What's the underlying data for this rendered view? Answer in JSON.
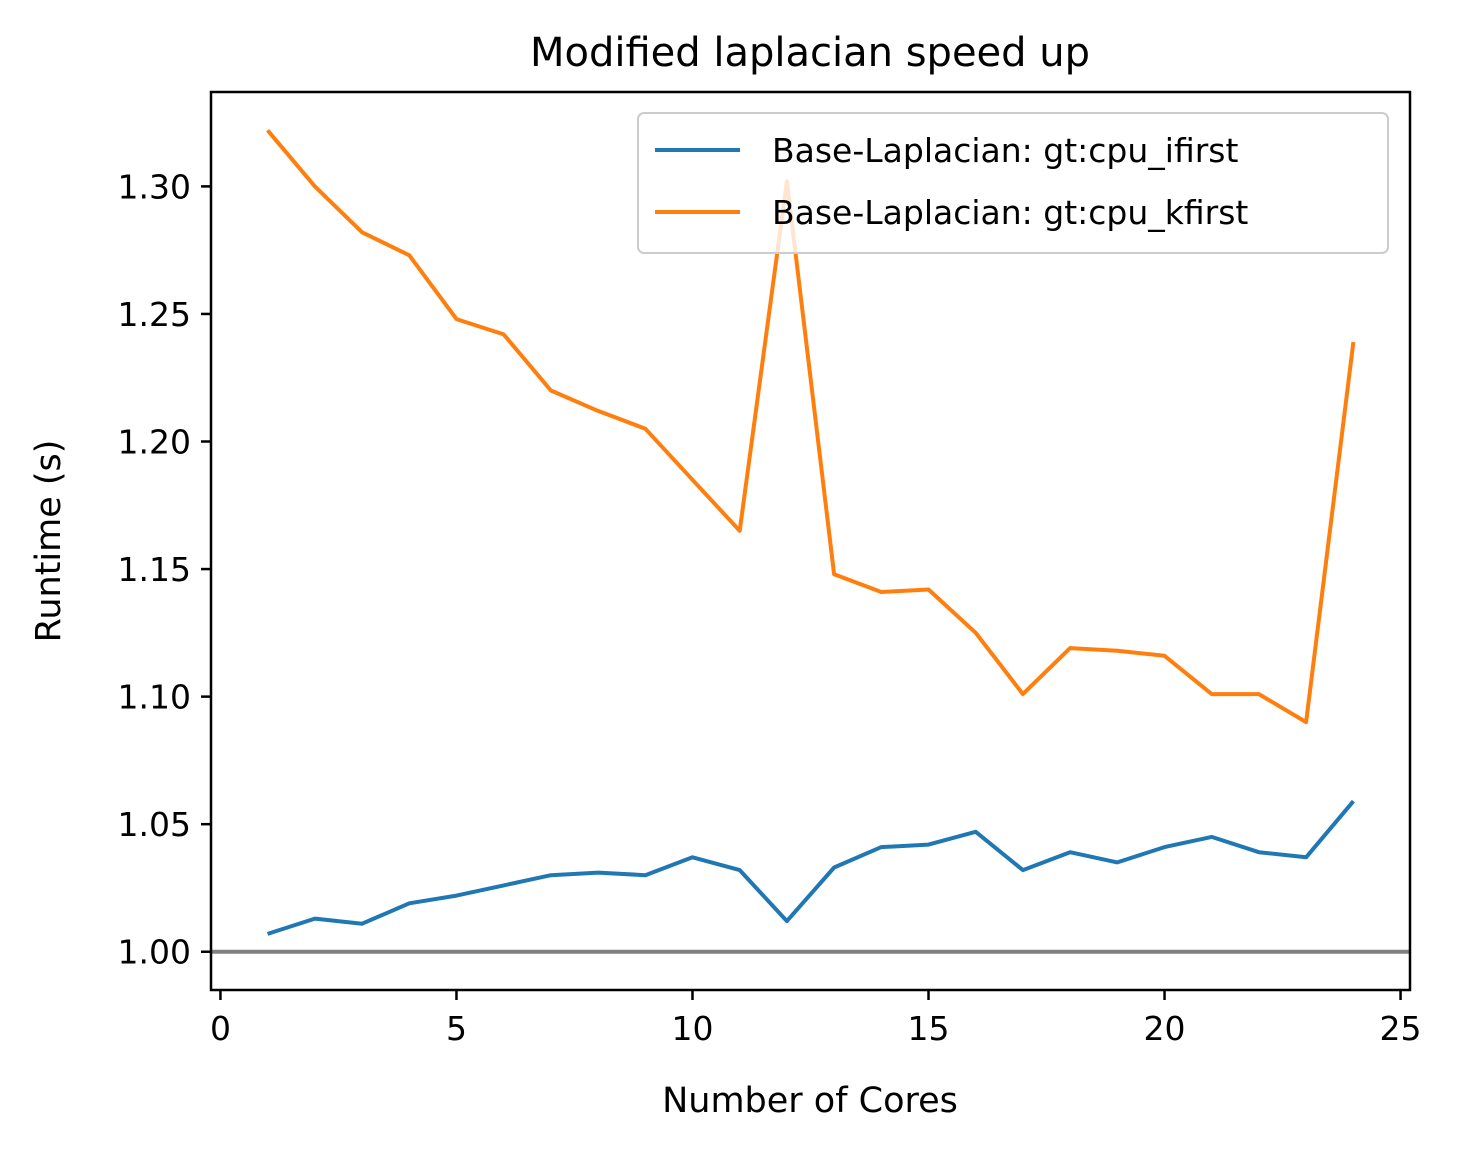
{
  "chart_data": {
    "type": "line",
    "title": "Modified laplacian speed up",
    "xlabel": "Number of Cores",
    "ylabel": "Runtime (s)",
    "xlim": [
      -0.2,
      25.2
    ],
    "ylim": [
      0.985,
      1.337
    ],
    "xticks": [
      0,
      5,
      10,
      15,
      20,
      25
    ],
    "xtick_labels": [
      "0",
      "5",
      "10",
      "15",
      "20",
      "25"
    ],
    "yticks": [
      1.0,
      1.05,
      1.1,
      1.15,
      1.2,
      1.25,
      1.3
    ],
    "ytick_labels": [
      "1.00",
      "1.05",
      "1.10",
      "1.15",
      "1.20",
      "1.25",
      "1.30"
    ],
    "grid": false,
    "legend_position": "upper right",
    "reference_line": {
      "y": 1.0,
      "color": "#808080"
    },
    "x": [
      1,
      2,
      3,
      4,
      5,
      6,
      7,
      8,
      9,
      10,
      11,
      12,
      13,
      14,
      15,
      16,
      17,
      18,
      19,
      20,
      21,
      22,
      23,
      24
    ],
    "series": [
      {
        "name": "Base-Laplacian: gt:cpu_ifirst",
        "color": "#1f77b4",
        "values": [
          1.007,
          1.013,
          1.011,
          1.019,
          1.022,
          1.026,
          1.03,
          1.031,
          1.03,
          1.037,
          1.032,
          1.012,
          1.033,
          1.041,
          1.042,
          1.047,
          1.032,
          1.039,
          1.035,
          1.041,
          1.045,
          1.039,
          1.037,
          1.059
        ]
      },
      {
        "name": "Base-Laplacian: gt:cpu_kfirst",
        "color": "#ff7f0e",
        "values": [
          1.322,
          1.3,
          1.282,
          1.273,
          1.248,
          1.242,
          1.22,
          1.212,
          1.205,
          1.185,
          1.165,
          1.302,
          1.148,
          1.141,
          1.142,
          1.125,
          1.101,
          1.119,
          1.118,
          1.116,
          1.101,
          1.101,
          1.09,
          1.239
        ]
      }
    ]
  }
}
